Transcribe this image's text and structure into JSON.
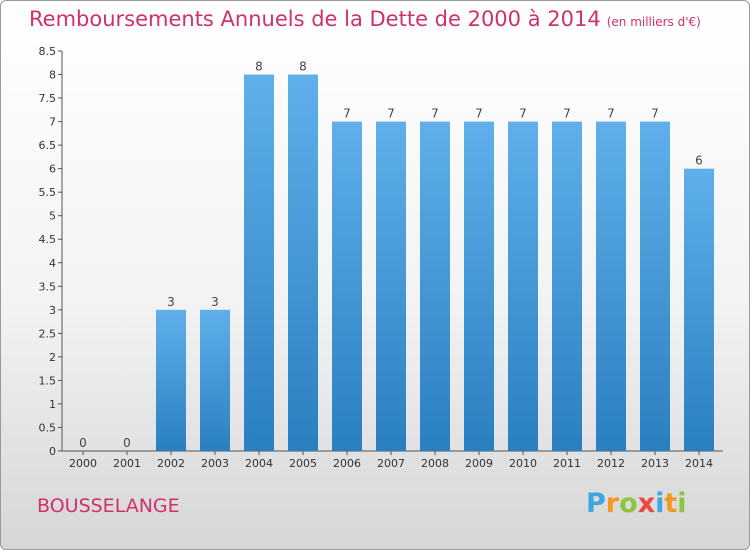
{
  "title": "Remboursements Annuels de la Dette de 2000 à 2014",
  "unit": "(en milliers d'€)",
  "commune": "BOUSSELANGE",
  "logo": "Proxiti",
  "colors": {
    "title": "#d0306b",
    "bar_top": "#5fb0ea",
    "bar_bottom": "#2a7fc0"
  },
  "chart_data": {
    "type": "bar",
    "title": "Remboursements Annuels de la Dette de 2000 à 2014",
    "xlabel": "",
    "ylabel": "",
    "categories": [
      "2000",
      "2001",
      "2002",
      "2003",
      "2004",
      "2005",
      "2006",
      "2007",
      "2008",
      "2009",
      "2010",
      "2011",
      "2012",
      "2013",
      "2014"
    ],
    "values": [
      0,
      0,
      3,
      3,
      8,
      8,
      7,
      7,
      7,
      7,
      7,
      7,
      7,
      7,
      6
    ],
    "data_labels": [
      "0",
      "0",
      "3",
      "3",
      "8",
      "8",
      "7",
      "7",
      "7",
      "7",
      "7",
      "7",
      "7",
      "7",
      "6"
    ],
    "ylim": [
      0,
      8.5
    ],
    "yticks": [
      0,
      0.5,
      1,
      1.5,
      2,
      2.5,
      3,
      3.5,
      4,
      4.5,
      5,
      5.5,
      6,
      6.5,
      7,
      7.5,
      8,
      8.5
    ],
    "ytick_labels": [
      "0",
      "0.5",
      "1",
      "1.5",
      "2",
      "2.5",
      "3",
      "3.5",
      "4",
      "4.5",
      "5",
      "5.5",
      "6",
      "6.5",
      "7",
      "7.5",
      "8",
      "8.5"
    ],
    "grid": false
  }
}
